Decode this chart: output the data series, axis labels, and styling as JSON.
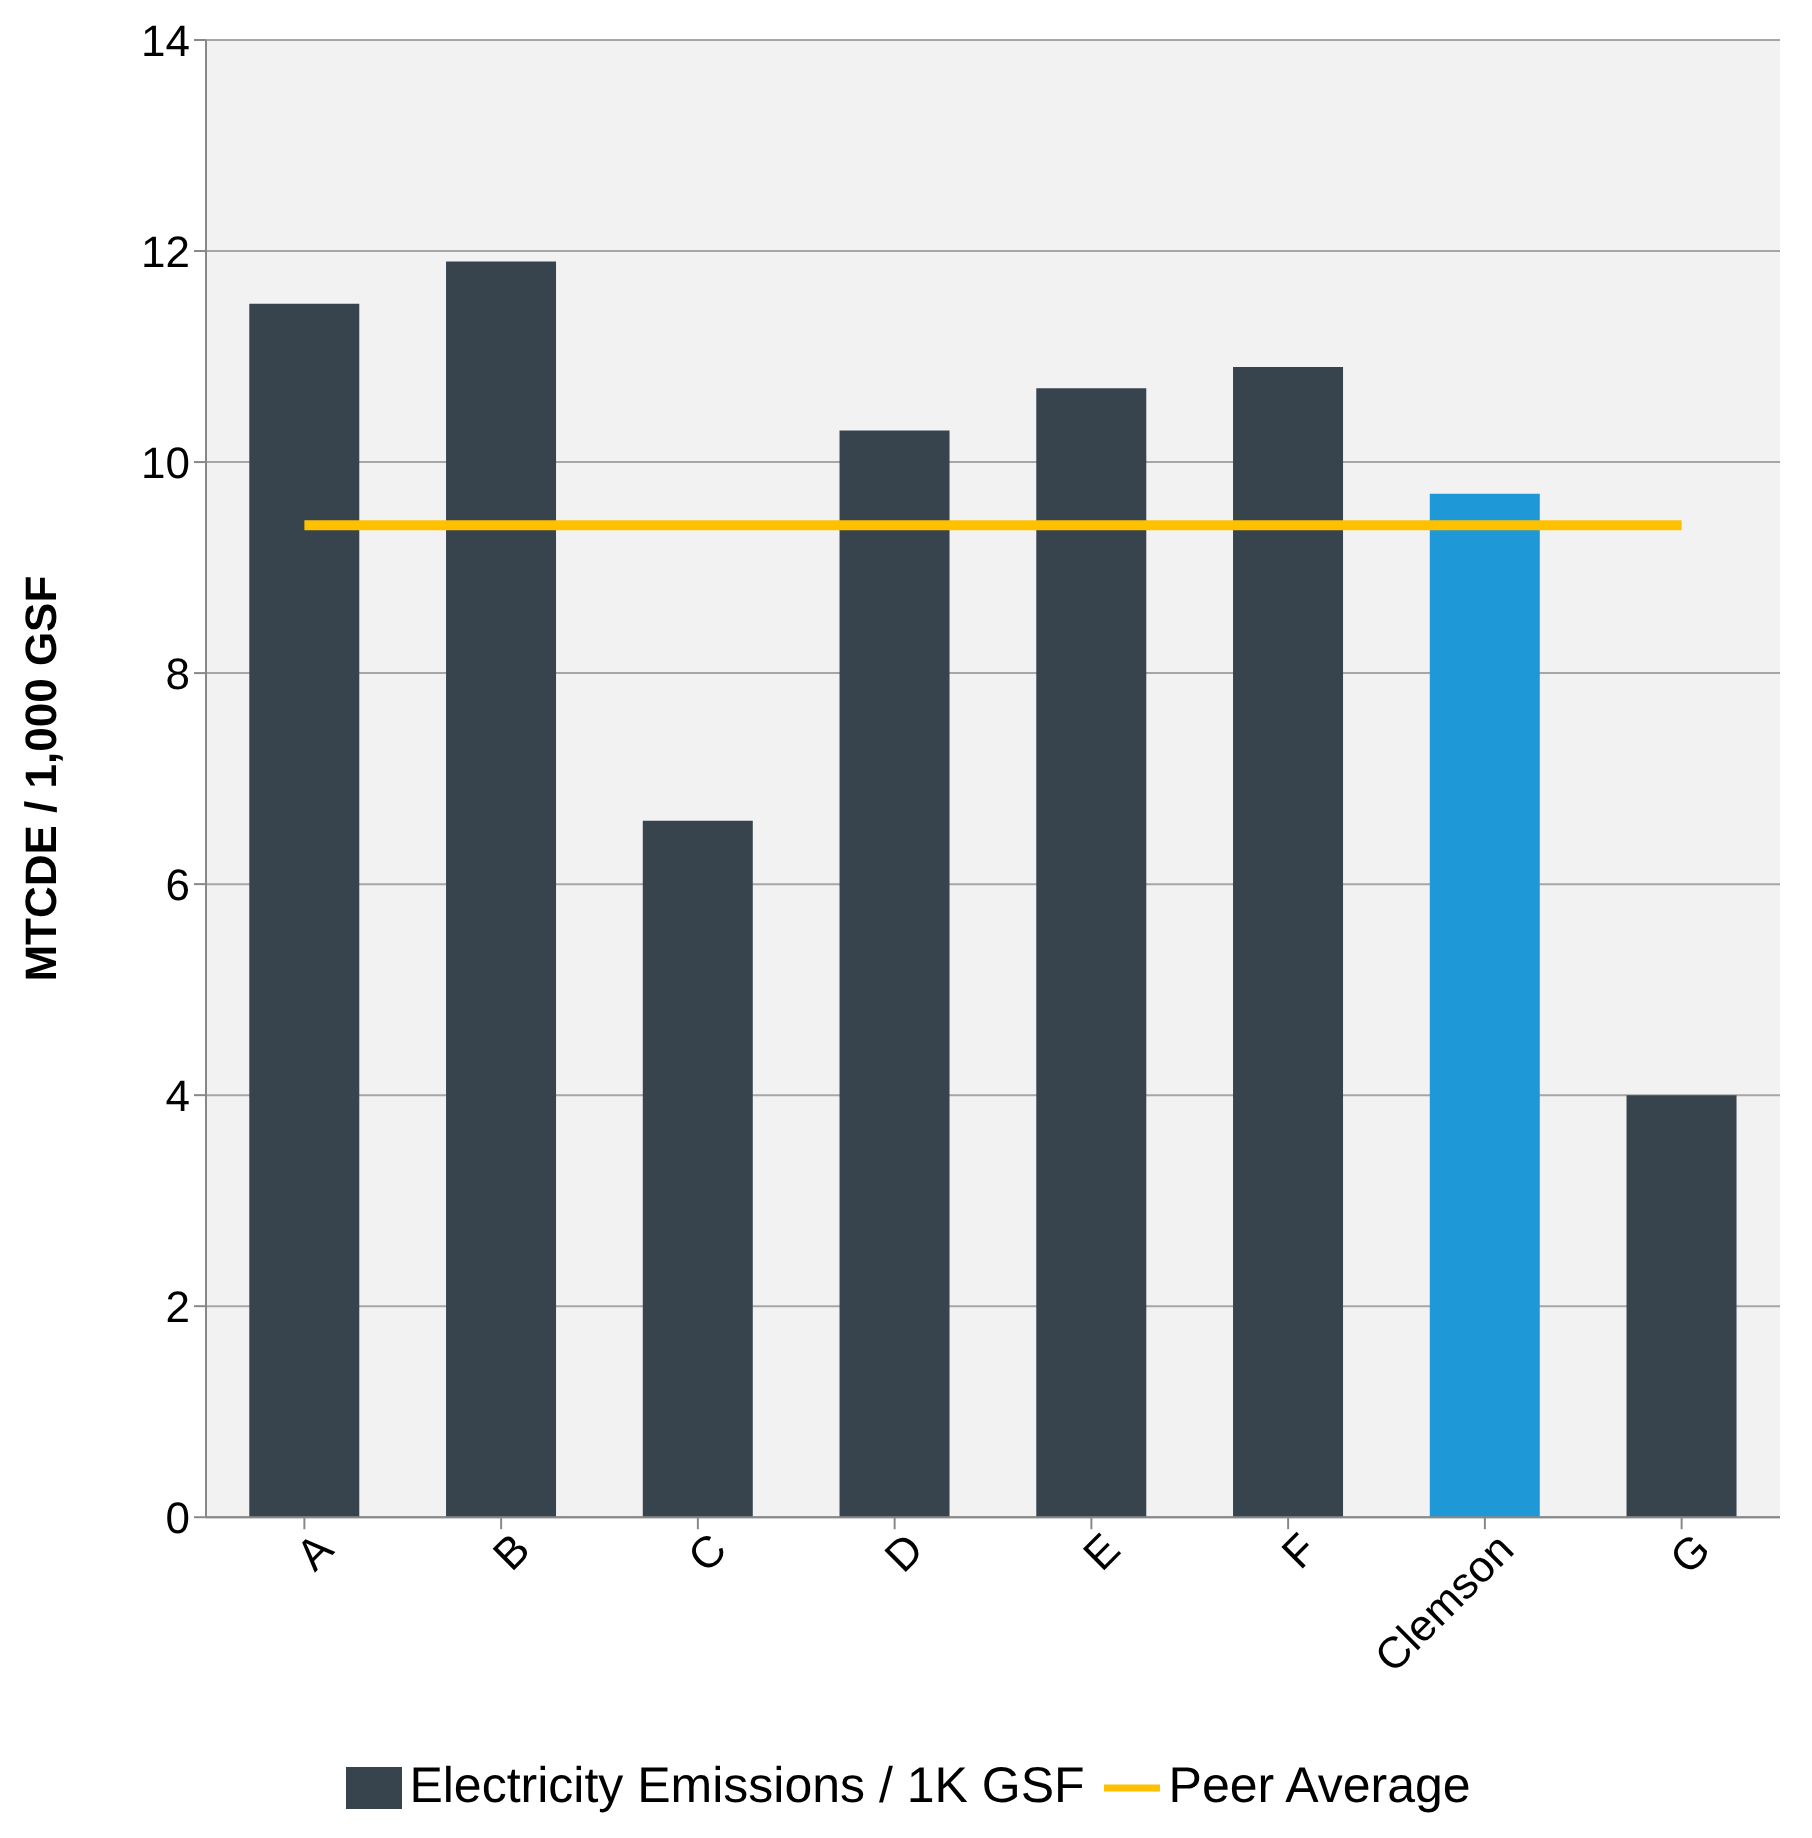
{
  "chart_data": {
    "type": "bar",
    "ylabel": "MTCDE / 1,000 GSF",
    "categories": [
      "A",
      "B",
      "C",
      "D",
      "E",
      "F",
      "Clemson",
      "G"
    ],
    "series": [
      {
        "name": "Electricity Emissions / 1K GSF",
        "color": "#37444e",
        "colors": [
          "#37444e",
          "#37444e",
          "#37444e",
          "#37444e",
          "#37444e",
          "#37444e",
          "#1e98d6",
          "#37444e"
        ],
        "values": [
          11.5,
          11.9,
          6.6,
          10.3,
          10.7,
          10.9,
          9.7,
          4.0
        ]
      },
      {
        "name": "Peer Average",
        "type": "line",
        "color": "#ffc000",
        "values": [
          9.4,
          9.4,
          9.4,
          9.4,
          9.4,
          9.4,
          9.4,
          9.4
        ]
      }
    ],
    "ylim": [
      0,
      14
    ],
    "yticks": [
      0,
      2,
      4,
      6,
      8,
      10,
      12,
      14
    ],
    "grid": "y",
    "legend": "bottom",
    "marker": "none"
  }
}
